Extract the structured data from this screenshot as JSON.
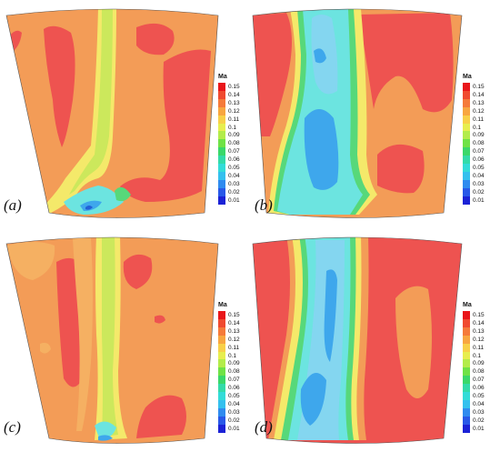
{
  "colors": {
    "bg": "#ffffff",
    "red": "#ee5350",
    "orange": "#f39c57",
    "lightorange": "#f5b062",
    "yellow": "#f4e96a",
    "lime": "#cce85c",
    "green": "#57d87a",
    "cyan": "#6ce4e0",
    "lightblue": "#84d6f0",
    "blue": "#3ea7ec",
    "deepblue": "#2361d6"
  },
  "legend": {
    "title": "Ma",
    "levels": [
      {
        "label": "0.15",
        "color": "#e9161a"
      },
      {
        "label": "0.14",
        "color": "#f04a30"
      },
      {
        "label": "0.13",
        "color": "#f57a3a"
      },
      {
        "label": "0.12",
        "color": "#f8a640"
      },
      {
        "label": "0.11",
        "color": "#f8d048"
      },
      {
        "label": "0.1",
        "color": "#e7ee4e"
      },
      {
        "label": "0.09",
        "color": "#b3ec4a"
      },
      {
        "label": "0.08",
        "color": "#6fe246"
      },
      {
        "label": "0.07",
        "color": "#3ad86a"
      },
      {
        "label": "0.06",
        "color": "#33dba9"
      },
      {
        "label": "0.05",
        "color": "#33dcd8"
      },
      {
        "label": "0.04",
        "color": "#34c0ee"
      },
      {
        "label": "0.03",
        "color": "#2f8bef"
      },
      {
        "label": "0.02",
        "color": "#2858e8"
      },
      {
        "label": "0.01",
        "color": "#1b22d6"
      }
    ]
  },
  "panels": [
    {
      "label": "(a)"
    },
    {
      "label": "(b)"
    },
    {
      "label": "(c)"
    },
    {
      "label": "(d)"
    }
  ]
}
